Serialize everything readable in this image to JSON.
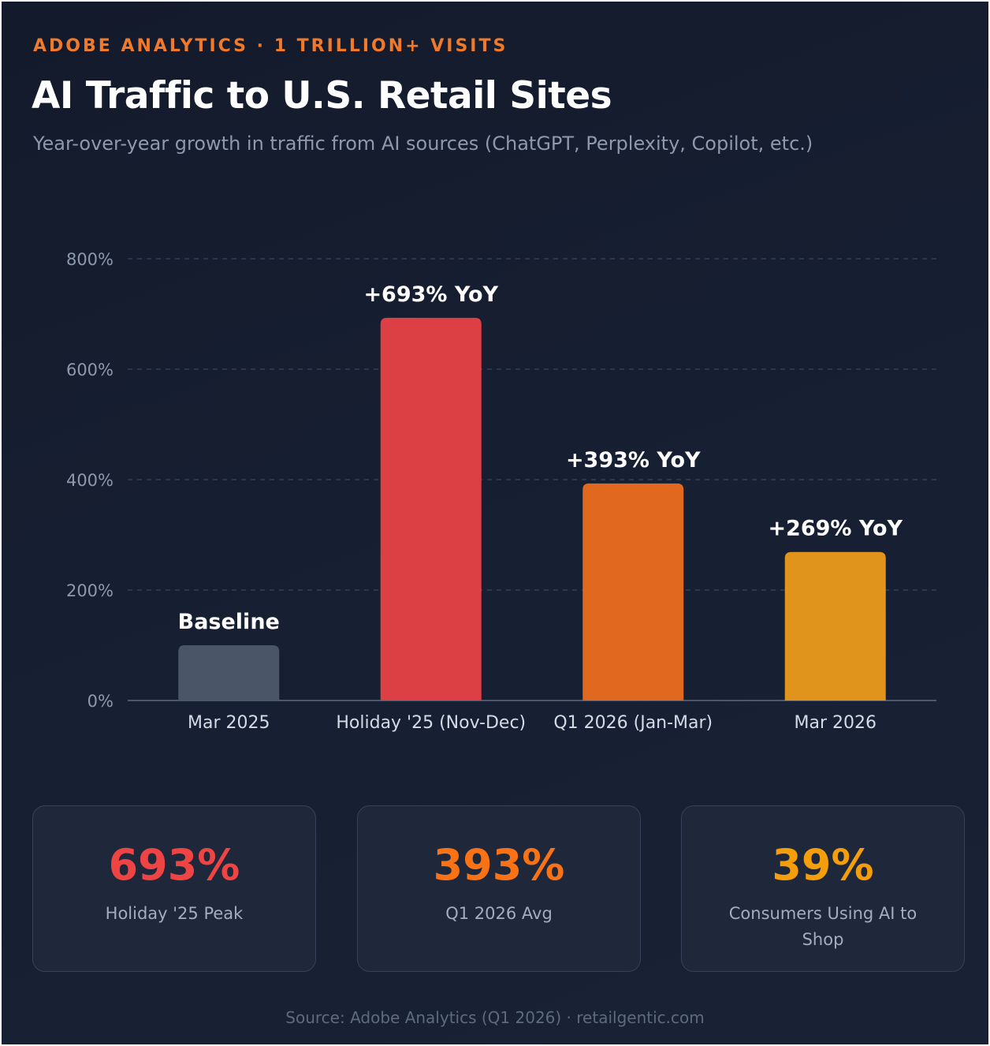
{
  "header": {
    "eyebrow": "ADOBE ANALYTICS · 1 TRILLION+ VISITS",
    "title": "AI Traffic to U.S. Retail Sites",
    "subtitle": "Year-over-year growth in traffic from AI sources (ChatGPT, Perplexity, Copilot, etc.)"
  },
  "chart_data": {
    "type": "bar",
    "categories": [
      "Mar 2025",
      "Holiday '25 (Nov-Dec)",
      "Q1 2026 (Jan-Mar)",
      "Mar 2026"
    ],
    "values": [
      100,
      693,
      393,
      269
    ],
    "data_labels": [
      "Baseline",
      "+693% YoY",
      "+393% YoY",
      "+269% YoY"
    ],
    "bar_colors": [
      "#4a5568",
      "#dc4044",
      "#e0691f",
      "#e0941b"
    ],
    "y_ticks": [
      "0%",
      "200%",
      "400%",
      "600%",
      "800%"
    ],
    "ylim": [
      0,
      800
    ],
    "grid": true,
    "xlabel": "",
    "ylabel": ""
  },
  "stats": [
    {
      "value": "693%",
      "label": "Holiday '25 Peak",
      "color": "#ef4444"
    },
    {
      "value": "393%",
      "label": "Q1 2026 Avg",
      "color": "#f97316"
    },
    {
      "value": "39%",
      "label": "Consumers Using AI to Shop",
      "color": "#f59e0b"
    }
  ],
  "footer": {
    "source": "Source: Adobe Analytics (Q1 2026) · retailgentic.com"
  }
}
